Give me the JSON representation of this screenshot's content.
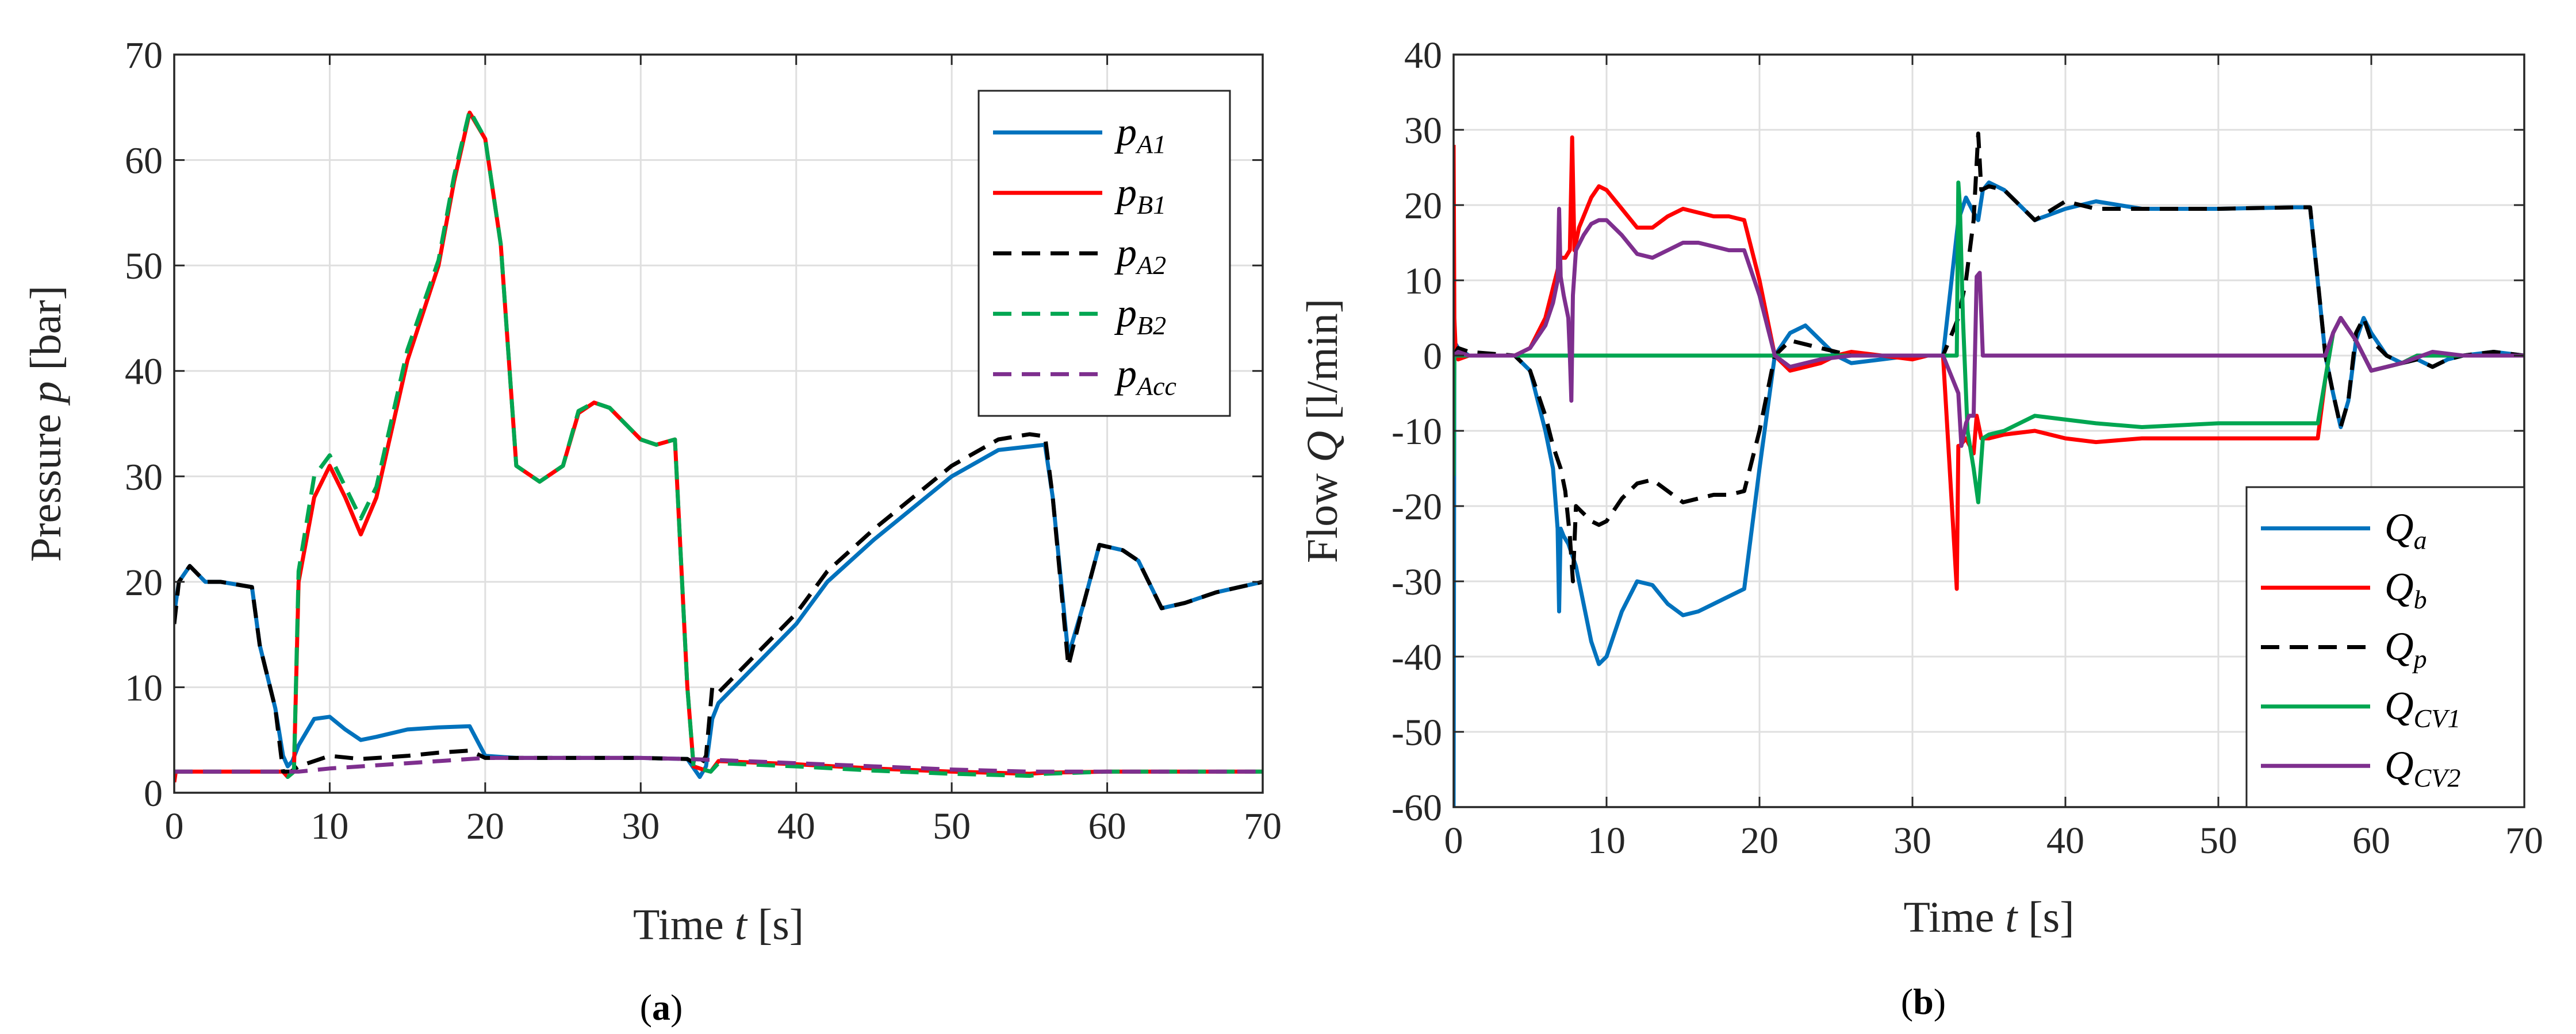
{
  "chart_data": [
    {
      "id": "a",
      "type": "line",
      "caption_open": "(",
      "caption_letter": "a",
      "caption_close": ")",
      "xlabel_pre": "Time ",
      "xlabel_var": "t",
      "xlabel_post": " [s]",
      "ylabel_pre": "Pressure ",
      "ylabel_var": "p",
      "ylabel_post": " [bar]",
      "xlim": [
        0,
        70
      ],
      "ylim": [
        0,
        70
      ],
      "xticks": [
        0,
        10,
        20,
        30,
        40,
        50,
        60,
        70
      ],
      "yticks": [
        0,
        10,
        20,
        30,
        40,
        50,
        60,
        70
      ],
      "grid": true,
      "legend_position": "top-right",
      "series": [
        {
          "name": "p_A1",
          "main": "p",
          "sub": "A1",
          "color": "#0072BD",
          "dash": "solid",
          "x": [
            0,
            0.3,
            1,
            2,
            3,
            5,
            5.5,
            6.5,
            7,
            7.3,
            7.6,
            8,
            9,
            10,
            11,
            12,
            13,
            15,
            17,
            19,
            20,
            22,
            25,
            30,
            33,
            33.8,
            34.2,
            34.6,
            35,
            36,
            38,
            40,
            42,
            45,
            50,
            53,
            56,
            56.5,
            57.5,
            58.5,
            59.5,
            61,
            62,
            63.5,
            65,
            67,
            70
          ],
          "y": [
            17,
            20,
            21.5,
            20,
            20,
            19.5,
            14,
            8,
            3.5,
            2.5,
            3,
            4.5,
            7,
            7.2,
            6,
            5,
            5.3,
            6,
            6.2,
            6.3,
            3.5,
            3.3,
            3.3,
            3.3,
            3.2,
            1.5,
            2.5,
            7,
            8.5,
            10,
            13,
            16,
            20,
            24,
            30,
            32.5,
            33,
            28,
            13,
            18,
            23.5,
            23,
            22,
            17.5,
            18,
            19,
            20
          ]
        },
        {
          "name": "p_B1",
          "main": "p",
          "sub": "B1",
          "color": "#FF0000",
          "dash": "solid",
          "x": [
            0,
            0.1,
            0.3,
            5,
            7,
            7.3,
            7.7,
            8,
            9,
            10,
            11,
            12,
            13,
            15,
            17,
            18,
            19,
            20,
            21,
            22,
            23.5,
            25,
            26,
            27,
            28,
            29,
            30,
            31,
            32.2,
            33,
            33.4,
            34,
            34.5,
            35,
            40,
            45,
            50,
            55,
            56,
            60,
            70
          ],
          "y": [
            1,
            2,
            2,
            2,
            2,
            1.5,
            2,
            20,
            28,
            31,
            28,
            24.5,
            28,
            41,
            50,
            58,
            64.5,
            62,
            52,
            31,
            29.5,
            31,
            36,
            37,
            36.5,
            35,
            33.5,
            33,
            33.5,
            10,
            2.5,
            2.2,
            2,
            3,
            2.7,
            2.3,
            2,
            1.8,
            1.9,
            2,
            2
          ]
        },
        {
          "name": "p_A2",
          "main": "p",
          "sub": "A2",
          "color": "#000000",
          "dash": "long",
          "x": [
            0,
            0.3,
            1,
            2,
            3,
            5,
            5.5,
            6.5,
            7,
            7.5,
            8,
            9,
            10,
            12,
            15,
            17,
            19,
            20,
            22,
            25,
            30,
            33,
            33.8,
            34.2,
            34.6,
            35,
            36,
            38,
            40,
            42,
            45,
            50,
            53,
            55,
            56,
            56.5,
            57.5,
            58.5,
            59.5,
            61,
            62,
            63.5,
            65,
            67,
            70
          ],
          "y": [
            16,
            20,
            21.5,
            20,
            20,
            19.5,
            14,
            8,
            2,
            2,
            2.5,
            3,
            3.5,
            3.2,
            3.5,
            3.8,
            4,
            3.3,
            3.3,
            3.3,
            3.3,
            3.2,
            2.5,
            3.5,
            10,
            9.5,
            11,
            14,
            17,
            21,
            25,
            31,
            33.5,
            34,
            33.8,
            28,
            12,
            18,
            23.5,
            23,
            22,
            17.5,
            18,
            19,
            20
          ]
        },
        {
          "name": "p_B2",
          "main": "p",
          "sub": "B2",
          "color": "#00A651",
          "dash": "long",
          "x": [
            0,
            0.3,
            5,
            7,
            7.3,
            7.7,
            8,
            9,
            10,
            11,
            12,
            13,
            15,
            17,
            18,
            19,
            20,
            21,
            22,
            23.5,
            25,
            26,
            27,
            28,
            29,
            30,
            31,
            32.2,
            33,
            33.4,
            34,
            34.5,
            35,
            40,
            45,
            50,
            55,
            56,
            60,
            70
          ],
          "y": [
            2,
            2,
            2,
            2,
            1.5,
            2,
            21,
            30,
            32,
            29,
            26,
            29,
            42,
            50.5,
            58.5,
            64.7,
            62,
            52,
            31,
            29.5,
            31,
            36.2,
            37,
            36.5,
            35,
            33.5,
            33,
            33.5,
            10,
            2.5,
            2.2,
            2,
            2.8,
            2.5,
            2.1,
            1.8,
            1.6,
            1.8,
            2,
            2
          ]
        },
        {
          "name": "p_Acc",
          "main": "p",
          "sub": "Acc",
          "color": "#7E2F8E",
          "dash": "long",
          "x": [
            0,
            5,
            8,
            10,
            15,
            20,
            25,
            30,
            33,
            35,
            40,
            45,
            50,
            55,
            60,
            65,
            70
          ],
          "y": [
            2,
            2,
            2,
            2.3,
            2.8,
            3.3,
            3.3,
            3.3,
            3.2,
            3.1,
            2.8,
            2.5,
            2.2,
            2,
            2,
            2,
            2
          ]
        }
      ]
    },
    {
      "id": "b",
      "type": "line",
      "caption_open": "(",
      "caption_letter": "b",
      "caption_close": ")",
      "xlabel_pre": "Time ",
      "xlabel_var": "t",
      "xlabel_post": " [s]",
      "ylabel_pre": "Flow ",
      "ylabel_var": "Q",
      "ylabel_post": " [l/min]",
      "xlim": [
        0,
        70
      ],
      "ylim": [
        -60,
        40
      ],
      "xticks": [
        0,
        10,
        20,
        30,
        40,
        50,
        60,
        70
      ],
      "yticks": [
        -60,
        -50,
        -40,
        -30,
        -20,
        -10,
        0,
        10,
        20,
        30,
        40
      ],
      "grid": true,
      "legend_position": "bottom-right",
      "series": [
        {
          "name": "Q_a",
          "main": "Q",
          "sub": "a",
          "color": "#0072BD",
          "dash": "solid",
          "x": [
            0,
            0.05,
            0.15,
            0.3,
            1,
            2,
            4,
            5,
            6,
            6.5,
            6.8,
            6.9,
            7.0,
            7.2,
            7.5,
            8,
            8.5,
            9,
            9.5,
            10,
            11,
            12,
            13,
            14,
            15,
            16,
            17,
            18,
            19,
            20,
            21,
            22,
            23,
            24,
            25,
            26,
            28,
            30,
            31,
            32,
            33,
            33.5,
            34,
            34.3,
            34.6,
            35,
            36,
            38,
            40,
            42,
            45,
            50,
            55,
            56,
            57,
            57.5,
            58,
            58.5,
            59,
            59.5,
            60,
            61,
            62,
            63,
            64,
            65,
            66,
            68,
            70
          ],
          "y": [
            -60,
            0,
            1.5,
            1,
            0,
            0,
            0,
            -2,
            -10,
            -15,
            -23,
            -34,
            -23,
            -24,
            -25,
            -28,
            -33,
            -38,
            -41,
            -40,
            -34,
            -30,
            -30.5,
            -33,
            -34.5,
            -34,
            -33,
            -32,
            -31,
            -15,
            0,
            3,
            4,
            2,
            0,
            -1,
            -0.5,
            0,
            0,
            0,
            18,
            21,
            19,
            18,
            22,
            23,
            22,
            18,
            19.5,
            20.5,
            19.5,
            19.5,
            19.7,
            19.7,
            0,
            -5,
            -9.5,
            -6,
            2,
            5,
            3,
            0,
            -1,
            -0.5,
            -1.5,
            -0.5,
            0,
            0.5,
            0
          ]
        },
        {
          "name": "Q_b",
          "main": "Q",
          "sub": "b",
          "color": "#FF0000",
          "dash": "solid",
          "x": [
            0,
            0.05,
            0.15,
            0.3,
            1,
            4,
            5,
            6,
            7,
            7.3,
            7.6,
            7.75,
            7.9,
            8.2,
            9,
            9.5,
            10,
            11,
            12,
            13,
            14,
            15,
            16,
            17,
            18,
            19,
            20,
            21,
            22,
            23,
            24,
            25,
            26,
            28,
            30,
            31,
            32,
            32.9,
            33.0,
            33.1,
            33.5,
            34,
            34.2,
            34.5,
            35,
            36,
            38,
            40,
            42,
            45,
            50,
            55,
            56,
            56.5,
            57,
            57.5,
            58,
            59,
            60,
            61,
            62,
            63,
            65,
            70
          ],
          "y": [
            28,
            5,
            0,
            -0.5,
            0,
            0,
            1,
            5,
            13,
            13,
            14,
            29,
            14,
            17,
            21,
            22.5,
            22,
            19.5,
            17,
            17,
            18.5,
            19.5,
            19,
            18.5,
            18.5,
            18,
            10,
            0,
            -2,
            -1.5,
            -1,
            0,
            0.5,
            0,
            -0.5,
            0,
            0,
            -31,
            -12,
            -12,
            -11,
            -13,
            -8,
            -11,
            -11,
            -10.5,
            -10,
            -11,
            -11.5,
            -11,
            -11,
            -11,
            -11,
            -11,
            -3,
            3,
            5,
            2,
            -2,
            -1.5,
            -1,
            0,
            0,
            0
          ]
        },
        {
          "name": "Q_p",
          "main": "Q",
          "sub": "p",
          "color": "#000000",
          "dash": "long",
          "x": [
            0,
            0.3,
            1,
            4,
            5,
            6,
            6.5,
            7,
            7.3,
            7.6,
            7.8,
            8,
            9,
            9.5,
            10,
            11,
            12,
            13,
            14,
            15,
            16,
            17,
            18,
            19,
            20,
            21,
            22,
            24,
            26,
            28,
            30,
            32,
            33,
            33.5,
            34,
            34.3,
            34.5,
            35,
            36,
            38,
            40,
            42,
            45,
            50,
            55,
            56,
            56.5,
            57,
            57.5,
            58,
            58.5,
            59,
            59.5,
            60,
            61,
            62,
            63,
            64,
            65,
            66,
            68,
            70
          ],
          "y": [
            0,
            1,
            0.5,
            0,
            -2,
            -8,
            -12,
            -15,
            -18,
            -24,
            -30,
            -20,
            -22,
            -22.5,
            -22,
            -19,
            -17,
            -16.5,
            -18,
            -19.5,
            -19,
            -18.5,
            -18.5,
            -18,
            -10,
            0,
            2,
            1,
            0,
            0,
            0,
            0,
            5,
            10,
            18,
            29.5,
            22,
            22.5,
            22,
            18,
            20.5,
            19.5,
            19.5,
            19.5,
            19.7,
            19.7,
            10,
            0,
            -5,
            -9.5,
            -6,
            3,
            5,
            2,
            0,
            -1,
            -0.5,
            -1.5,
            -0.5,
            0,
            0.5,
            0
          ]
        },
        {
          "name": "Q_CV1",
          "main": "Q",
          "sub": "CV1",
          "color": "#00A651",
          "dash": "solid",
          "x": [
            0,
            0.05,
            0.15,
            0.3,
            1,
            32.9,
            33.0,
            33.1,
            33.3,
            33.6,
            34,
            34.3,
            34.6,
            35,
            36,
            38,
            40,
            42,
            45,
            50,
            55,
            56,
            56.5,
            57,
            57.5,
            58,
            59,
            60,
            61,
            62,
            63,
            65,
            70
          ],
          "y": [
            -16,
            0,
            0,
            0,
            0,
            0,
            23,
            20,
            5,
            -10,
            -15,
            -19.5,
            -11,
            -10.5,
            -10,
            -8,
            -8.5,
            -9,
            -9.5,
            -9,
            -9,
            -9,
            -9,
            -3,
            3,
            5,
            2,
            -2,
            -1.5,
            -1,
            0,
            0,
            0
          ]
        },
        {
          "name": "Q_CV2",
          "main": "Q",
          "sub": "CV2",
          "color": "#7E2F8E",
          "dash": "solid",
          "x": [
            0,
            0.3,
            1,
            4,
            5,
            6,
            6.5,
            6.8,
            6.9,
            7.0,
            7.2,
            7.5,
            7.6,
            7.7,
            7.8,
            8,
            8.5,
            9,
            9.5,
            10,
            11,
            12,
            13,
            14,
            15,
            16,
            17,
            18,
            19,
            20,
            21,
            22,
            24,
            26,
            28,
            30,
            32,
            33,
            33.2,
            33.5,
            33.7,
            34,
            34.2,
            34.4,
            34.6,
            35,
            40,
            50,
            56,
            57,
            57.5,
            58,
            59,
            60,
            62,
            64,
            66,
            70
          ],
          "y": [
            0,
            0.5,
            0,
            0,
            1,
            4,
            7,
            10,
            19.5,
            10.5,
            8,
            5,
            0,
            -6,
            8,
            14,
            16,
            17.5,
            18,
            18,
            16,
            13.5,
            13,
            14,
            15,
            15,
            14.5,
            14,
            14,
            8,
            0,
            -1.5,
            -0.5,
            0,
            0,
            0,
            0,
            -5,
            -12,
            -9,
            -8,
            -8,
            10.5,
            11,
            0,
            0,
            0,
            0,
            0,
            0,
            3,
            5,
            2,
            -2,
            -1,
            0.5,
            0,
            0
          ]
        }
      ]
    }
  ]
}
